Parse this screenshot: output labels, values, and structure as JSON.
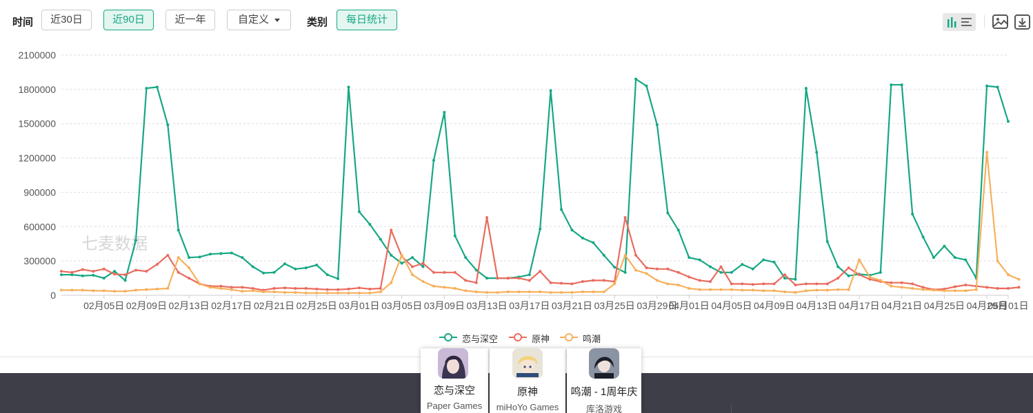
{
  "toolbar": {
    "time_label": "时间",
    "time_buttons": [
      "近30日",
      "近90日",
      "近一年"
    ],
    "active_time": "近90日",
    "custom_label": "自定义",
    "category_label": "类别",
    "category_button": "每日统计"
  },
  "icons": [
    "bar-chart-icon",
    "list-icon",
    "image-icon",
    "download-icon",
    "caret-down-icon"
  ],
  "watermark": "七麦数据",
  "chart_data": {
    "type": "line",
    "ylim": [
      0,
      2100000
    ],
    "yticks": [
      "0",
      "300000",
      "600000",
      "900000",
      "1200000",
      "1500000",
      "1800000",
      "2100000"
    ],
    "xtick_labels": [
      "02月05日",
      "02月09日",
      "02月13日",
      "02月17日",
      "02月21日",
      "02月25日",
      "03月01日",
      "03月05日",
      "03月09日",
      "03月13日",
      "03月17日",
      "03月21日",
      "03月25日",
      "03月29日",
      "04月01日",
      "04月05日",
      "04月09日",
      "04月13日",
      "04月17日",
      "04月21日",
      "04月25日",
      "04月29日",
      "05月01日"
    ],
    "grid": true,
    "legend": "bottom",
    "series": [
      {
        "name": "恋与深空",
        "color": "#16a784",
        "values": [
          180000,
          180000,
          170000,
          175000,
          150000,
          210000,
          130000,
          480000,
          1810000,
          1820000,
          1490000,
          570000,
          330000,
          335000,
          360000,
          365000,
          370000,
          330000,
          250000,
          195000,
          200000,
          275000,
          230000,
          240000,
          265000,
          180000,
          145000,
          1820000,
          730000,
          620000,
          490000,
          350000,
          280000,
          330000,
          250000,
          1180000,
          1600000,
          520000,
          330000,
          220000,
          150000,
          150000,
          150000,
          160000,
          180000,
          580000,
          1790000,
          750000,
          570000,
          500000,
          460000,
          350000,
          245000,
          200000,
          1890000,
          1830000,
          1490000,
          720000,
          570000,
          330000,
          310000,
          250000,
          200000,
          200000,
          270000,
          230000,
          310000,
          290000,
          150000,
          140000,
          1810000,
          1250000,
          470000,
          250000,
          170000,
          185000,
          175000,
          200000,
          1840000,
          1840000,
          710000,
          510000,
          330000,
          430000,
          330000,
          310000,
          150000,
          1830000,
          1820000,
          1520000
        ]
      },
      {
        "name": "原神",
        "color": "#e96b5e",
        "values": [
          210000,
          200000,
          225000,
          210000,
          230000,
          185000,
          180000,
          220000,
          210000,
          270000,
          350000,
          200000,
          150000,
          100000,
          80000,
          80000,
          70000,
          70000,
          60000,
          45000,
          60000,
          65000,
          60000,
          60000,
          55000,
          50000,
          50000,
          55000,
          65000,
          55000,
          60000,
          570000,
          340000,
          250000,
          280000,
          200000,
          200000,
          200000,
          130000,
          110000,
          680000,
          150000,
          150000,
          150000,
          130000,
          210000,
          110000,
          105000,
          100000,
          120000,
          130000,
          130000,
          120000,
          680000,
          350000,
          240000,
          230000,
          230000,
          200000,
          160000,
          130000,
          120000,
          250000,
          100000,
          100000,
          95000,
          100000,
          100000,
          180000,
          90000,
          100000,
          100000,
          100000,
          150000,
          240000,
          180000,
          140000,
          120000,
          110000,
          110000,
          100000,
          70000,
          50000,
          55000,
          75000,
          90000,
          80000,
          70000,
          60000,
          60000,
          70000
        ]
      },
      {
        "name": "鸣潮",
        "color": "#f7b05b",
        "values": [
          45000,
          45000,
          45000,
          40000,
          40000,
          35000,
          35000,
          45000,
          50000,
          55000,
          60000,
          330000,
          240000,
          100000,
          70000,
          60000,
          50000,
          35000,
          40000,
          30000,
          30000,
          25000,
          25000,
          20000,
          20000,
          20000,
          20000,
          20000,
          20000,
          20000,
          30000,
          110000,
          350000,
          180000,
          120000,
          80000,
          70000,
          60000,
          40000,
          30000,
          25000,
          25000,
          30000,
          30000,
          30000,
          30000,
          25000,
          25000,
          25000,
          30000,
          30000,
          30000,
          100000,
          350000,
          220000,
          190000,
          130000,
          100000,
          90000,
          60000,
          50000,
          50000,
          50000,
          50000,
          45000,
          45000,
          40000,
          40000,
          30000,
          25000,
          40000,
          45000,
          45000,
          50000,
          50000,
          310000,
          160000,
          130000,
          80000,
          70000,
          60000,
          50000,
          45000,
          40000,
          40000,
          40000,
          50000,
          1250000,
          300000,
          180000,
          140000
        ]
      }
    ]
  },
  "apps": [
    {
      "name": "恋与深空",
      "publisher": "Paper Games"
    },
    {
      "name": "原神",
      "publisher": "miHoYo Games"
    },
    {
      "name": "鸣潮 - 1周年庆",
      "publisher": "库洛游戏"
    }
  ]
}
